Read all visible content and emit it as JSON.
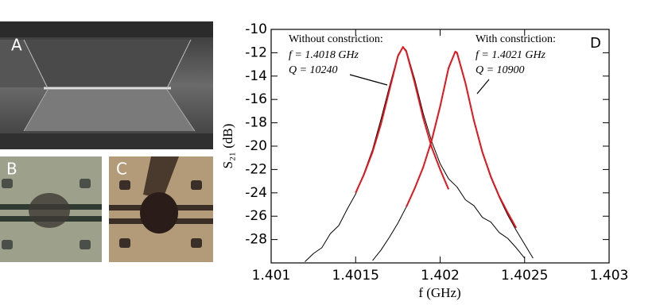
{
  "panel_labels": [
    "A",
    "B",
    "C"
  ],
  "chart_data": {
    "type": "line",
    "x_label": "f (GHz)",
    "y_label": "S₂₁ (dB)",
    "panel_label": "D",
    "annotations": [
      {
        "lines": [
          "Without constriction:",
          "f = 1.4018 GHz",
          "Q = 10240"
        ]
      },
      {
        "lines": [
          "With constriction:",
          "f = 1.4021 GHz",
          "Q = 10900"
        ]
      }
    ],
    "xlim": [
      1.401,
      1.403
    ],
    "xticks": [
      1.401,
      1.4015,
      1.402,
      1.4025,
      1.403
    ],
    "ylim": [
      -30,
      -10
    ],
    "yticks": [
      -28,
      -26,
      -24,
      -22,
      -20,
      -18,
      -16,
      -14,
      -12,
      -10
    ],
    "series": [
      {
        "color": "#000000",
        "x": [
          1.4012,
          1.40125,
          1.4013,
          1.40135,
          1.4014,
          1.40145,
          1.4015,
          1.40155,
          1.4016,
          1.40165,
          1.4017,
          1.40175,
          1.40178,
          1.4018,
          1.40185,
          1.4019,
          1.40195,
          1.402,
          1.40205,
          1.4021,
          1.40215,
          1.4022,
          1.40225,
          1.4023,
          1.40235,
          1.4024,
          1.40245,
          1.4025
        ],
        "values": [
          -29.9,
          -29.2,
          -28.7,
          -27.5,
          -26.8,
          -25.4,
          -24.1,
          -22.3,
          -20.3,
          -17.7,
          -14.9,
          -12.2,
          -11.5,
          -11.8,
          -14.3,
          -17.2,
          -19.6,
          -21.5,
          -22.8,
          -23.5,
          -24.6,
          -25.1,
          -26.1,
          -26.5,
          -27.4,
          -27.9,
          -28.7,
          -29.6
        ]
      },
      {
        "color": "#000000",
        "x": [
          1.4016,
          1.40165,
          1.4017,
          1.40175,
          1.4018,
          1.40185,
          1.4019,
          1.40195,
          1.402,
          1.40205,
          1.40209,
          1.4021,
          1.40215,
          1.4022,
          1.40225,
          1.4023,
          1.40235,
          1.4024,
          1.40245,
          1.4025,
          1.40255
        ],
        "values": [
          -29.8,
          -28.9,
          -27.8,
          -26.6,
          -25.2,
          -23.6,
          -21.8,
          -19.6,
          -16.7,
          -13.4,
          -11.9,
          -12.1,
          -14.7,
          -17.9,
          -20.6,
          -22.7,
          -24.4,
          -25.9,
          -27.2,
          -28.4,
          -29.6
        ]
      },
      {
        "color": "#e8141c",
        "x": [
          1.4015,
          1.40155,
          1.4016,
          1.40165,
          1.4017,
          1.40175,
          1.40178,
          1.4018,
          1.40185,
          1.4019,
          1.40195,
          1.402,
          1.40205
        ],
        "values": [
          -24.0,
          -22.4,
          -20.5,
          -18.1,
          -15.2,
          -12.3,
          -11.5,
          -11.9,
          -14.6,
          -17.6,
          -20.1,
          -22.0,
          -23.7
        ]
      },
      {
        "color": "#e8141c",
        "x": [
          1.4018,
          1.40185,
          1.4019,
          1.40195,
          1.402,
          1.40205,
          1.40209,
          1.4021,
          1.40215,
          1.4022,
          1.40225,
          1.4023,
          1.40235,
          1.4024,
          1.40245
        ],
        "values": [
          -25.2,
          -23.6,
          -21.8,
          -19.5,
          -16.6,
          -13.3,
          -11.9,
          -12.0,
          -14.6,
          -17.8,
          -20.5,
          -22.6,
          -24.3,
          -25.7,
          -27.0
        ]
      }
    ]
  }
}
